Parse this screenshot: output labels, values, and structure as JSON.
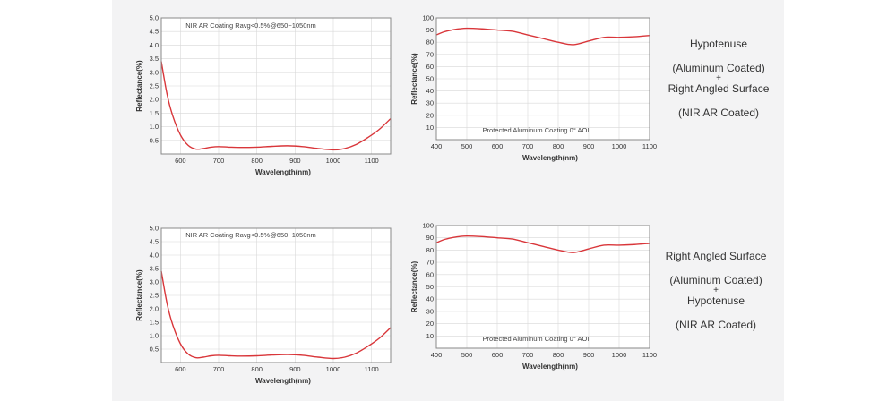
{
  "rows": [
    {
      "description": {
        "line1": "Hypotenuse",
        "line2": "(Aluminum Coated)",
        "plus": "+",
        "line3": "Right Angled Surface",
        "line4": "(NIR AR Coated)"
      }
    },
    {
      "description": {
        "line1": "Right Angled Surface",
        "line2": "(Aluminum Coated)",
        "plus": "+",
        "line3": "Hypotenuse",
        "line4": "(NIR AR Coated)"
      }
    }
  ],
  "chart_data": [
    {
      "type": "line",
      "annotation": "NIR AR Coating Ravg<0.5%@650~1050nm",
      "xlabel": "Wavelength(nm)",
      "ylabel": "Reflectance(%)",
      "xlim": [
        550,
        1150
      ],
      "ylim": [
        0,
        5.0
      ],
      "xticks": [
        600,
        700,
        800,
        900,
        1000,
        1100
      ],
      "yticks": [
        0.5,
        1.0,
        1.5,
        2.0,
        2.5,
        3.0,
        3.5,
        4.0,
        4.5,
        5.0
      ],
      "ytick_labels": [
        "0.5",
        "1.0",
        "1.5",
        "2.0",
        "2.5",
        "3.0",
        "3.5",
        "4.0",
        "4.5",
        "5.0"
      ],
      "grid": true,
      "color": "#d9363a",
      "x": [
        550,
        565,
        580,
        600,
        620,
        640,
        660,
        680,
        700,
        730,
        760,
        800,
        840,
        880,
        920,
        960,
        1000,
        1030,
        1060,
        1090,
        1120,
        1150
      ],
      "y": [
        3.4,
        2.2,
        1.4,
        0.7,
        0.32,
        0.18,
        0.2,
        0.25,
        0.27,
        0.25,
        0.24,
        0.25,
        0.28,
        0.3,
        0.27,
        0.2,
        0.15,
        0.2,
        0.35,
        0.6,
        0.9,
        1.3
      ]
    },
    {
      "type": "line",
      "annotation": "Protected Aluminum Coating  0°  AOI",
      "xlabel": "Wavelength(nm)",
      "ylabel": "Reflectance(%)",
      "xlim": [
        400,
        1100
      ],
      "ylim": [
        0,
        100
      ],
      "xticks": [
        400,
        500,
        600,
        700,
        800,
        900,
        1000,
        1100
      ],
      "yticks": [
        10,
        20,
        30,
        40,
        50,
        60,
        70,
        80,
        90,
        100
      ],
      "ytick_labels": [
        "10",
        "20",
        "30",
        "40",
        "50",
        "60",
        "70",
        "80",
        "90",
        "100"
      ],
      "grid": true,
      "color": "#d9363a",
      "x": [
        400,
        425,
        450,
        475,
        500,
        550,
        600,
        650,
        700,
        750,
        800,
        850,
        900,
        950,
        1000,
        1050,
        1100
      ],
      "y": [
        86,
        88.5,
        90,
        91,
        91.5,
        91,
        90,
        89,
        86,
        83,
        80,
        78,
        81,
        84,
        84,
        84.5,
        85.5
      ]
    },
    {
      "type": "line",
      "annotation": "NIR AR Coating Ravg<0.5%@650~1050nm",
      "xlabel": "Wavelength(nm)",
      "ylabel": "Reflectance(%)",
      "xlim": [
        550,
        1150
      ],
      "ylim": [
        0,
        5.0
      ],
      "xticks": [
        600,
        700,
        800,
        900,
        1000,
        1100
      ],
      "yticks": [
        0.5,
        1.0,
        1.5,
        2.0,
        2.5,
        3.0,
        3.5,
        4.0,
        4.5,
        5.0
      ],
      "ytick_labels": [
        "0.5",
        "1.0",
        "1.5",
        "2.0",
        "2.5",
        "3.0",
        "3.5",
        "4.0",
        "4.5",
        "5.0"
      ],
      "grid": true,
      "color": "#d9363a",
      "x": [
        550,
        565,
        580,
        600,
        620,
        640,
        660,
        680,
        700,
        730,
        760,
        800,
        840,
        880,
        920,
        960,
        1000,
        1030,
        1060,
        1090,
        1120,
        1150
      ],
      "y": [
        3.4,
        2.2,
        1.4,
        0.7,
        0.32,
        0.18,
        0.2,
        0.25,
        0.27,
        0.25,
        0.24,
        0.25,
        0.28,
        0.3,
        0.27,
        0.2,
        0.15,
        0.2,
        0.35,
        0.6,
        0.9,
        1.3
      ]
    },
    {
      "type": "line",
      "annotation": "Protected Aluminum Coating  0°  AOI",
      "xlabel": "Wavelength(nm)",
      "ylabel": "Reflectance(%)",
      "xlim": [
        400,
        1100
      ],
      "ylim": [
        0,
        100
      ],
      "xticks": [
        400,
        500,
        600,
        700,
        800,
        900,
        1000,
        1100
      ],
      "yticks": [
        10,
        20,
        30,
        40,
        50,
        60,
        70,
        80,
        90,
        100
      ],
      "ytick_labels": [
        "10",
        "20",
        "30",
        "40",
        "50",
        "60",
        "70",
        "80",
        "90",
        "100"
      ],
      "grid": true,
      "color": "#d9363a",
      "x": [
        400,
        425,
        450,
        475,
        500,
        550,
        600,
        650,
        700,
        750,
        800,
        850,
        900,
        950,
        1000,
        1050,
        1100
      ],
      "y": [
        86,
        88.5,
        90,
        91,
        91.5,
        91,
        90,
        89,
        86,
        83,
        80,
        78,
        81,
        84,
        84,
        84.5,
        85.5
      ]
    }
  ]
}
